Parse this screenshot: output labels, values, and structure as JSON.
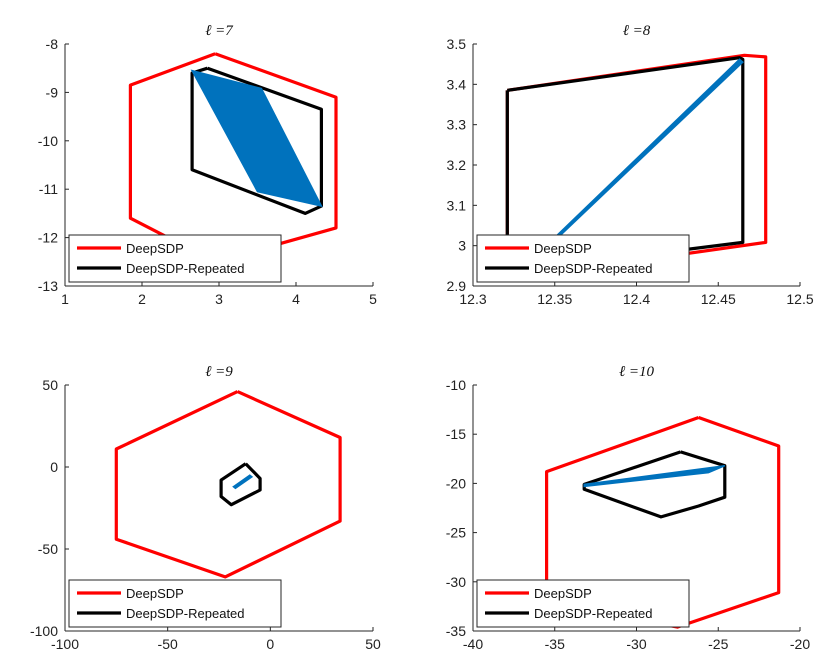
{
  "chart_data": [
    {
      "type": "line",
      "title": "ℓ =7",
      "xlim": [
        1,
        5
      ],
      "ylim": [
        -13,
        -8
      ],
      "xticks": [
        1,
        2,
        3,
        4,
        5
      ],
      "yticks": [
        -13,
        -12,
        -11,
        -10,
        -9,
        -8
      ],
      "legend": {
        "placement": "bottom-left"
      },
      "series": [
        {
          "name": "DeepSDP",
          "color": "#ff0000",
          "x": [
            2.95,
            4.52,
            4.52,
            2.95,
            1.85,
            1.85,
            2.95
          ],
          "y": [
            -8.2,
            -9.1,
            -11.8,
            -12.5,
            -11.6,
            -8.85,
            -8.2
          ]
        },
        {
          "name": "DeepSDP-Repeated",
          "color": "#000000",
          "x": [
            2.85,
            4.33,
            4.33,
            4.12,
            2.65,
            2.65,
            2.85
          ],
          "y": [
            -8.5,
            -9.35,
            -11.35,
            -11.5,
            -10.6,
            -8.6,
            -8.5
          ]
        },
        {
          "name": "",
          "color": "#0072bd",
          "fill": true,
          "x": [
            2.65,
            3.55,
            4.33,
            3.5,
            2.65
          ],
          "y": [
            -8.55,
            -8.92,
            -11.35,
            -11.05,
            -8.55
          ]
        }
      ]
    },
    {
      "type": "line",
      "title": "ℓ =8",
      "xlim": [
        12.3,
        12.5
      ],
      "ylim": [
        2.9,
        3.5
      ],
      "xticks": [
        12.3,
        12.35,
        12.4,
        12.45,
        12.5
      ],
      "yticks": [
        2.9,
        3.0,
        3.1,
        3.2,
        3.3,
        3.4,
        3.5
      ],
      "legend": {
        "placement": "bottom-left"
      },
      "series": [
        {
          "name": "DeepSDP",
          "color": "#ff0000",
          "x": [
            12.321,
            12.466,
            12.479,
            12.479,
            12.334,
            12.321,
            12.321
          ],
          "y": [
            3.385,
            3.472,
            3.468,
            3.008,
            2.925,
            2.935,
            3.385
          ]
        },
        {
          "name": "DeepSDP-Repeated",
          "color": "#000000",
          "x": [
            12.321,
            12.463,
            12.465,
            12.465,
            12.321,
            12.321
          ],
          "y": [
            3.385,
            3.466,
            3.462,
            3.008,
            2.935,
            3.385
          ]
        },
        {
          "name": "",
          "color": "#0072bd",
          "fill": true,
          "x": [
            12.35,
            12.463,
            12.465,
            12.352,
            12.35
          ],
          "y": [
            3.02,
            3.462,
            3.455,
            3.02,
            3.02
          ]
        }
      ]
    },
    {
      "type": "line",
      "title": "ℓ =9",
      "xlim": [
        -100,
        50
      ],
      "ylim": [
        -100,
        50
      ],
      "xticks": [
        -100,
        -50,
        0,
        50
      ],
      "yticks": [
        -100,
        -50,
        0,
        50
      ],
      "legend": {
        "placement": "bottom-left"
      },
      "series": [
        {
          "name": "DeepSDP",
          "color": "#ff0000",
          "x": [
            -16,
            34,
            34,
            -22,
            -75,
            -75,
            -16
          ],
          "y": [
            46,
            18,
            -33,
            -67,
            -44,
            11,
            46
          ]
        },
        {
          "name": "DeepSDP-Repeated",
          "color": "#000000",
          "x": [
            -12,
            -5,
            -5,
            -19,
            -24,
            -24,
            -12
          ],
          "y": [
            2,
            -7,
            -14,
            -23,
            -18,
            -8,
            2
          ]
        },
        {
          "name": "",
          "color": "#0072bd",
          "fill": true,
          "x": [
            -18,
            -10,
            -9,
            -17,
            -18
          ],
          "y": [
            -12,
            -5,
            -6,
            -13,
            -12
          ]
        }
      ]
    },
    {
      "type": "line",
      "title": "ℓ =10",
      "xlim": [
        -40,
        -20
      ],
      "ylim": [
        -35,
        -10
      ],
      "xticks": [
        -40,
        -35,
        -30,
        -25,
        -20
      ],
      "yticks": [
        -35,
        -30,
        -25,
        -20,
        -15,
        -10
      ],
      "legend": {
        "placement": "bottom-left"
      },
      "series": [
        {
          "name": "DeepSDP",
          "color": "#ff0000",
          "x": [
            -26.2,
            -21.3,
            -21.3,
            -27.5,
            -35.5,
            -35.5,
            -26.2
          ],
          "y": [
            -13.3,
            -16.2,
            -31.1,
            -34.6,
            -32.1,
            -18.8,
            -13.3
          ]
        },
        {
          "name": "DeepSDP-Repeated",
          "color": "#000000",
          "x": [
            -27.3,
            -24.6,
            -24.6,
            -26.2,
            -28.5,
            -33.2,
            -33.2,
            -27.3
          ],
          "y": [
            -16.8,
            -18.2,
            -21.4,
            -22.3,
            -23.4,
            -20.6,
            -20.1,
            -16.8
          ]
        },
        {
          "name": "",
          "color": "#0072bd",
          "fill": true,
          "x": [
            -33.2,
            -24.6,
            -25.6,
            -33.2
          ],
          "y": [
            -20.1,
            -18.2,
            -18.9,
            -20.3
          ]
        }
      ]
    }
  ]
}
